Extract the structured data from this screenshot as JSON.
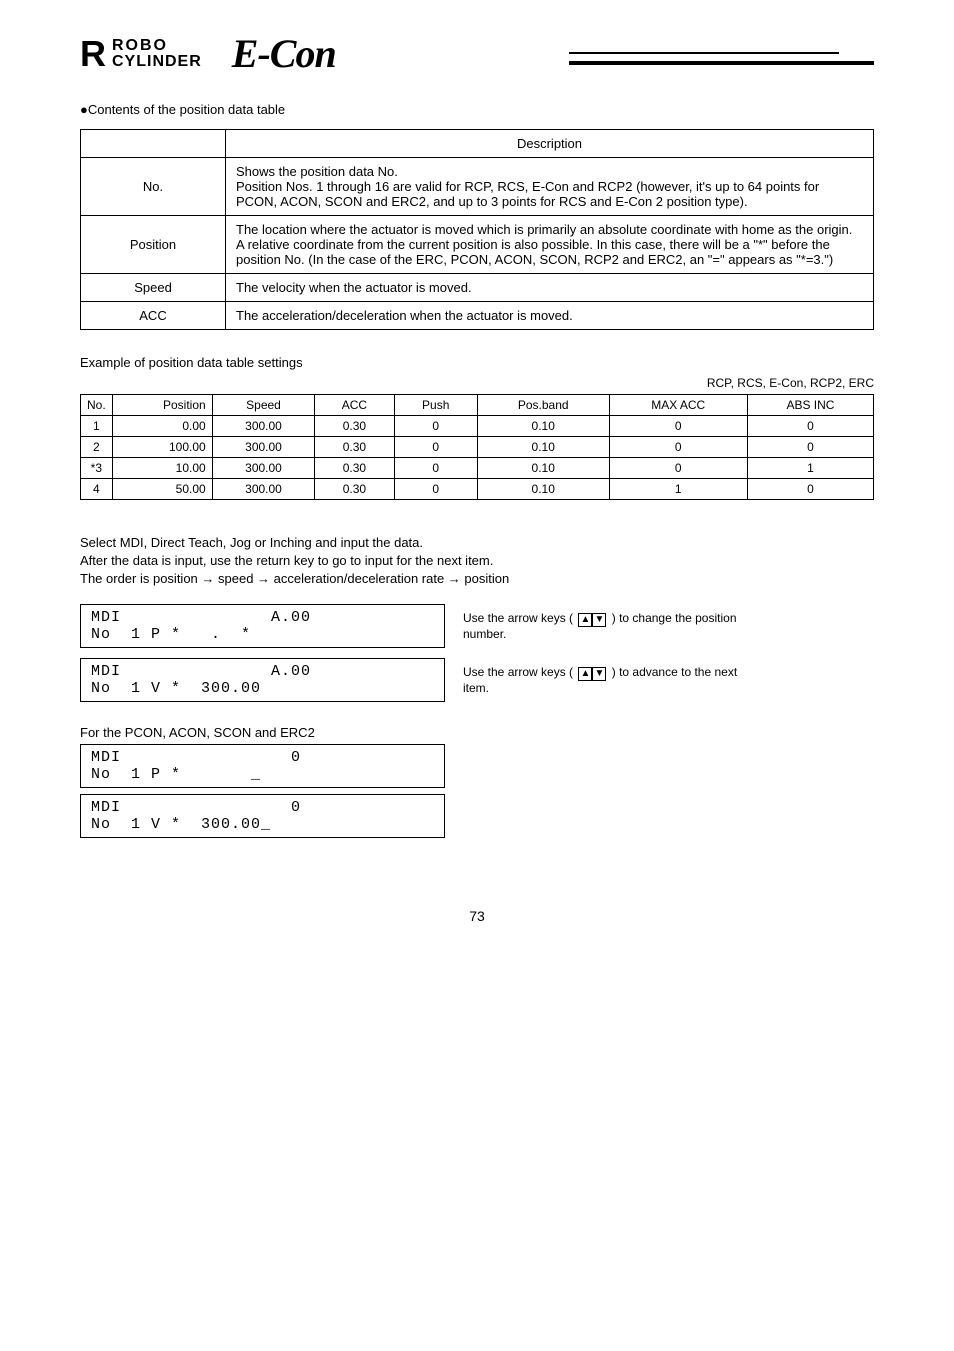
{
  "logos": {
    "r_mark": "R",
    "robo_line1": "ROBO",
    "robo_line2": "CYLINDER",
    "econ": "E-Con"
  },
  "section_title": "●Contents of the position data table",
  "table1": {
    "header_col1": "",
    "header_col2": "Description",
    "rows": [
      {
        "col1": "No.",
        "col2": "Shows the position data No.<br>Position Nos. 1 through 16 are valid for RCP, RCS, E-Con and RCP2 (however, it's up to 64 points for PCON, ACON, SCON and ERC2, and up to 3 points for RCS and E-Con 2 position type)."
      },
      {
        "col1": "Position",
        "col2": "The location where the actuator is moved which is primarily an absolute coordinate with home as the origin. A relative coordinate from the current position is also possible. In this case, there will be a \"*\" before the position No. (In the case of the ERC, PCON, ACON, SCON, RCP2 and ERC2, an \"=\" appears as \"*=3.\")"
      },
      {
        "col1": "Speed",
        "col2": "The velocity when the actuator is moved."
      },
      {
        "col1": "ACC",
        "col2": "The acceleration/deceleration when the actuator is moved."
      }
    ]
  },
  "subsection_title": "Example of position data table settings",
  "table2_note": "RCP, RCS, E-Con, RCP2, ERC",
  "table2": {
    "headers": [
      "No.",
      "Position",
      "Speed",
      "ACC",
      "Push",
      "Pos.band",
      "MAX ACC",
      "ABS INC"
    ],
    "rows": [
      [
        {
          "no": "1",
          "pos": "0.00"
        },
        "300.00",
        "0.30",
        "0",
        "0.10",
        "0",
        "0"
      ],
      [
        {
          "no": "2",
          "pos": "100.00"
        },
        "300.00",
        "0.30",
        "0",
        "0.10",
        "0",
        "0"
      ],
      [
        {
          "no": "*3",
          "pos": "10.00"
        },
        "300.00",
        "0.30",
        "0",
        "0.10",
        "0",
        "1"
      ],
      [
        {
          "no": "4",
          "pos": "50.00"
        },
        "300.00",
        "0.30",
        "0",
        "0.10",
        "1",
        "0"
      ]
    ]
  },
  "desc_para": [
    "Select MDI, Direct Teach, Jog or Inching and input the data.",
    "After the data is input, use the return key to go to input for the next item.",
    "The order is position → speed → acceleration/deceleration rate → position"
  ],
  "lcd": {
    "box1": {
      "text": "MDI&nbsp;&nbsp;&nbsp;&nbsp;&nbsp;&nbsp;&nbsp;&nbsp;&nbsp;&nbsp;&nbsp;&nbsp;&nbsp;&nbsp;&nbsp;A.00<br>No&nbsp;&nbsp;1&nbsp;P&nbsp;*&nbsp;&nbsp;&nbsp;.&nbsp;&nbsp;*"
    },
    "note1": "Use the arrow keys (      ) to change the position<br>number.",
    "box2": {
      "text": "MDI&nbsp;&nbsp;&nbsp;&nbsp;&nbsp;&nbsp;&nbsp;&nbsp;&nbsp;&nbsp;&nbsp;&nbsp;&nbsp;&nbsp;&nbsp;A.00<br>No&nbsp;&nbsp;1&nbsp;V&nbsp;*&nbsp;&nbsp;300.00"
    },
    "note2": "Use the arrow keys (      ) to advance to the next<br>item.",
    "note3": "For the PCON, ACON, SCON and ERC2",
    "box3": {
      "text": "MDI&nbsp;&nbsp;&nbsp;&nbsp;&nbsp;&nbsp;&nbsp;&nbsp;&nbsp;&nbsp;&nbsp;&nbsp;&nbsp;&nbsp;&nbsp;&nbsp;&nbsp;0<br>No&nbsp;&nbsp;1&nbsp;P&nbsp;*&nbsp;&nbsp;&nbsp;&nbsp;&nbsp;&nbsp;&nbsp;_"
    },
    "box4": {
      "text": "MDI&nbsp;&nbsp;&nbsp;&nbsp;&nbsp;&nbsp;&nbsp;&nbsp;&nbsp;&nbsp;&nbsp;&nbsp;&nbsp;&nbsp;&nbsp;&nbsp;&nbsp;0<br>No&nbsp;&nbsp;1&nbsp;V&nbsp;*&nbsp;&nbsp;300.00_"
    }
  },
  "page_number": "73"
}
